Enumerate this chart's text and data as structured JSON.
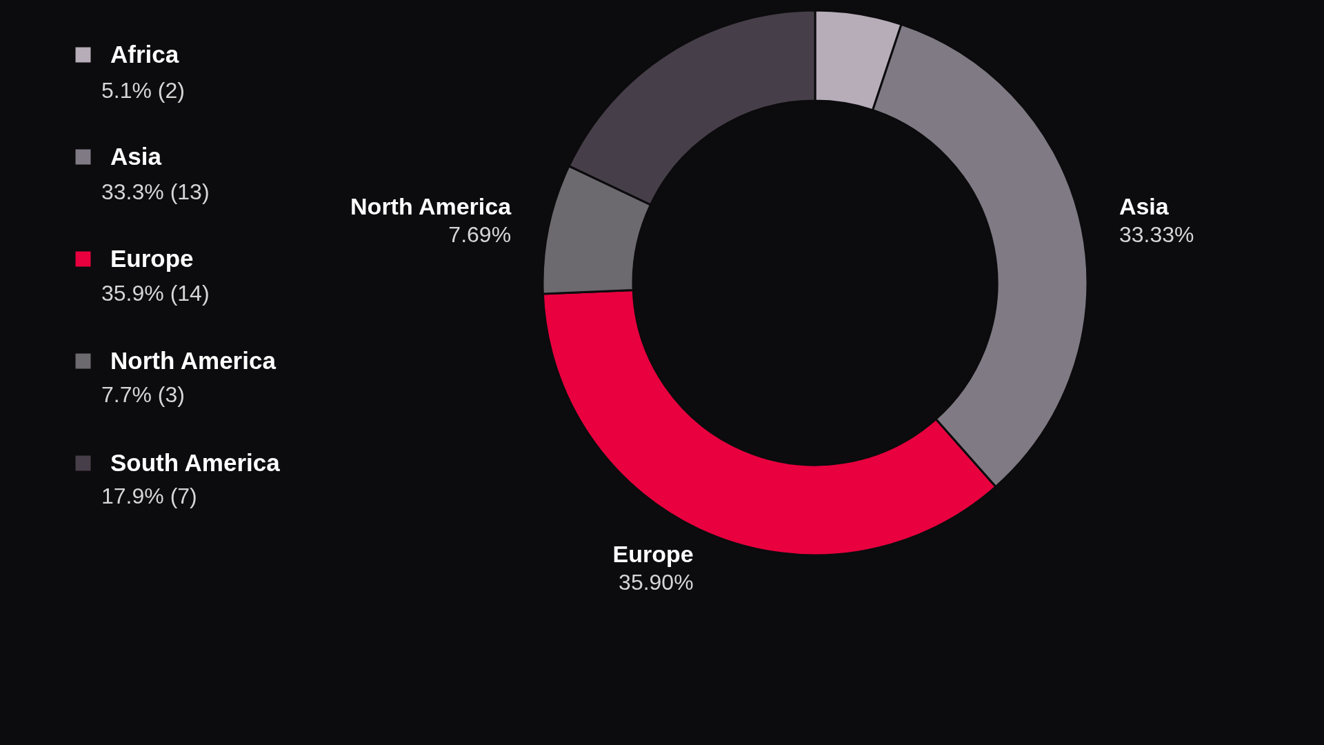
{
  "chart_data": {
    "type": "donut",
    "categories": [
      "Africa",
      "Asia",
      "Europe",
      "North America",
      "South America"
    ],
    "values": [
      5.13,
      33.33,
      35.9,
      7.69,
      17.95
    ],
    "colors": [
      "#b7adb9",
      "#7f7a84",
      "#e8003f",
      "#6c6a6f",
      "#463e48"
    ],
    "value_labels": [
      null,
      "33.33%",
      "35.90%",
      "7.69%",
      null
    ],
    "annotations": [
      "5.1% (2)",
      "33.3% (13)",
      "35.9% (14)",
      "7.7% (3)",
      "17.9% (7)"
    ],
    "legend": "left"
  }
}
